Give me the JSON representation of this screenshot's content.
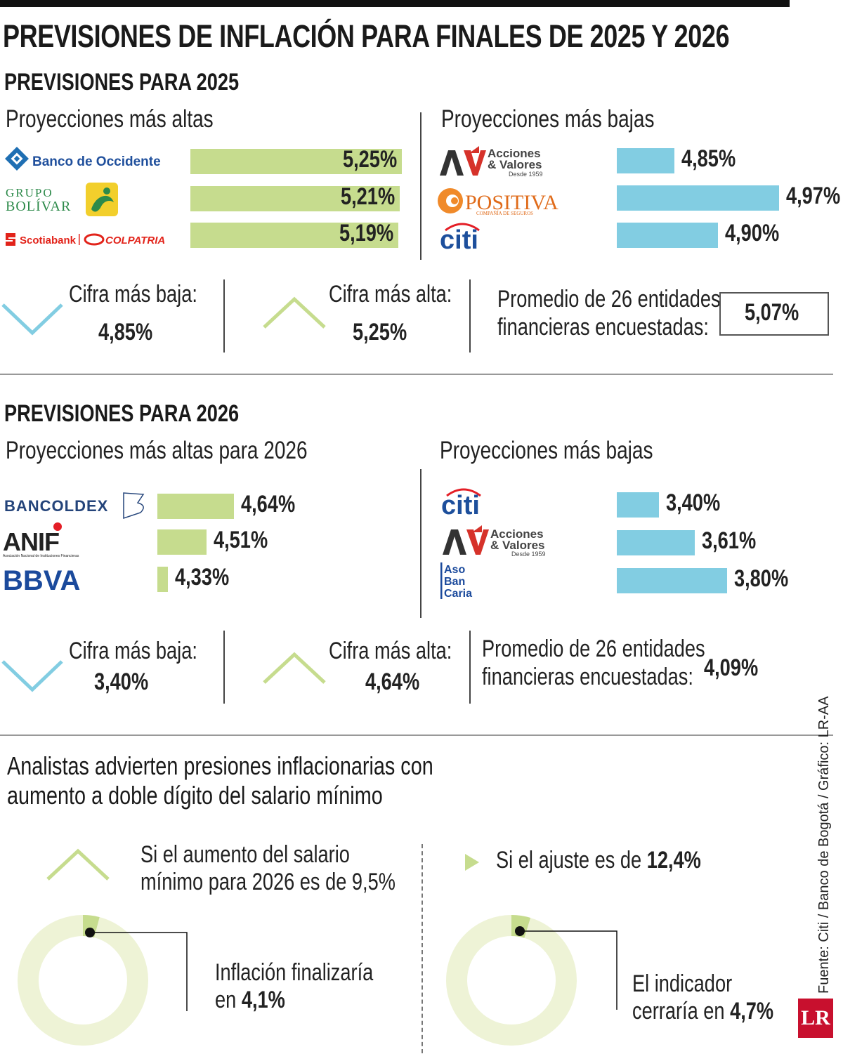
{
  "title": "PREVISIONES DE INFLACIÓN PARA FINALES DE 2025 Y 2026",
  "colors": {
    "high": "#c6dc8e",
    "low": "#82cde2",
    "donut": "#eef3d6",
    "donut_fill": "#c6dc8e",
    "brand": "#c8102e"
  },
  "s2025": {
    "heading": "PREVISIONES PARA  2025",
    "high_title": "Proyecciones más altas",
    "low_title": "Proyecciones más bajas",
    "high": [
      {
        "entity": "Banco de Occidente",
        "value": 5.25,
        "label": "5,25%"
      },
      {
        "entity": "Grupo Bolívar",
        "value": 5.21,
        "label": "5,21%"
      },
      {
        "entity": "Scotiabank Colpatria",
        "value": 5.19,
        "label": "5,19%"
      }
    ],
    "low": [
      {
        "entity": "Acciones & Valores",
        "value": 4.85,
        "label": "4,85%"
      },
      {
        "entity": "Positiva",
        "value": 4.97,
        "label": "4,97%"
      },
      {
        "entity": "Citi",
        "value": 4.9,
        "label": "4,90%"
      }
    ],
    "lowest_label": "Cifra más baja:",
    "lowest_value": "4,85%",
    "highest_label": "Cifra más alta:",
    "highest_value": "5,25%",
    "avg_line1": "Promedio de 26 entidades",
    "avg_line2": "financieras encuestadas:",
    "avg_value": "5,07%"
  },
  "s2026": {
    "heading": "PREVISIONES PARA  2026",
    "high_title": "Proyecciones más altas para 2026",
    "low_title": "Proyecciones más bajas",
    "high": [
      {
        "entity": "Bancoldex",
        "value": 4.64,
        "label": "4,64%"
      },
      {
        "entity": "ANIF",
        "value": 4.51,
        "label": "4,51%"
      },
      {
        "entity": "BBVA",
        "value": 4.33,
        "label": "4,33%"
      }
    ],
    "low": [
      {
        "entity": "Citi",
        "value": 3.4,
        "label": "3,40%"
      },
      {
        "entity": "Acciones & Valores",
        "value": 3.61,
        "label": "3,61%"
      },
      {
        "entity": "Asobancaria",
        "value": 3.8,
        "label": "3,80%"
      }
    ],
    "lowest_label": "Cifra más baja:",
    "lowest_value": "3,40%",
    "highest_label": "Cifra más alta:",
    "highest_value": "4,64%",
    "avg_line1": "Promedio de 26 entidades",
    "avg_line2": "financieras encuestadas:",
    "avg_value": "4,09%"
  },
  "logos": {
    "occidente": "Banco de Occidente",
    "bolivar1": "GRUPO",
    "bolivar2": "BOLÍVAR",
    "scotia": "Scotiabank",
    "colpatria": "COLPATRIA",
    "av1": "Acciones",
    "av2": "& Valores",
    "av3": "Desde 1959",
    "positiva": "POSITIVA",
    "positiva_sub": "COMPAÑÍA DE SEGUROS",
    "citi": "citi",
    "bancoldex": "BANCOLDEX",
    "anif": "ANIF",
    "anif_sub": "Asociación Nacional de Instituciones Financieras",
    "bbva": "BBVA",
    "aso1": "Aso",
    "aso2": "Ban",
    "aso3": "Caria"
  },
  "analysis": {
    "title_line1": "Analistas advierten presiones inflacionarias con",
    "title_line2": "aumento a doble dígito del salario mínimo",
    "left_cond1": "Si el aumento del salario",
    "left_cond2": "mínimo para 2026 es de 9,5%",
    "left_result_pre": "Inflación finalizaría",
    "left_result_en": "en ",
    "left_result_value": "4,1%",
    "left_value": 4.1,
    "right_cond_pre": "Si el ajuste es de ",
    "right_cond_value": "12,4%",
    "right_result_pre": "El indicador",
    "right_result_mid": "cerraría en ",
    "right_result_value": "4,7%",
    "right_value": 4.7
  },
  "source": "Fuente: Citi / Banco de Bogotá / Gráfico: LR-AA",
  "brand": "LR"
}
